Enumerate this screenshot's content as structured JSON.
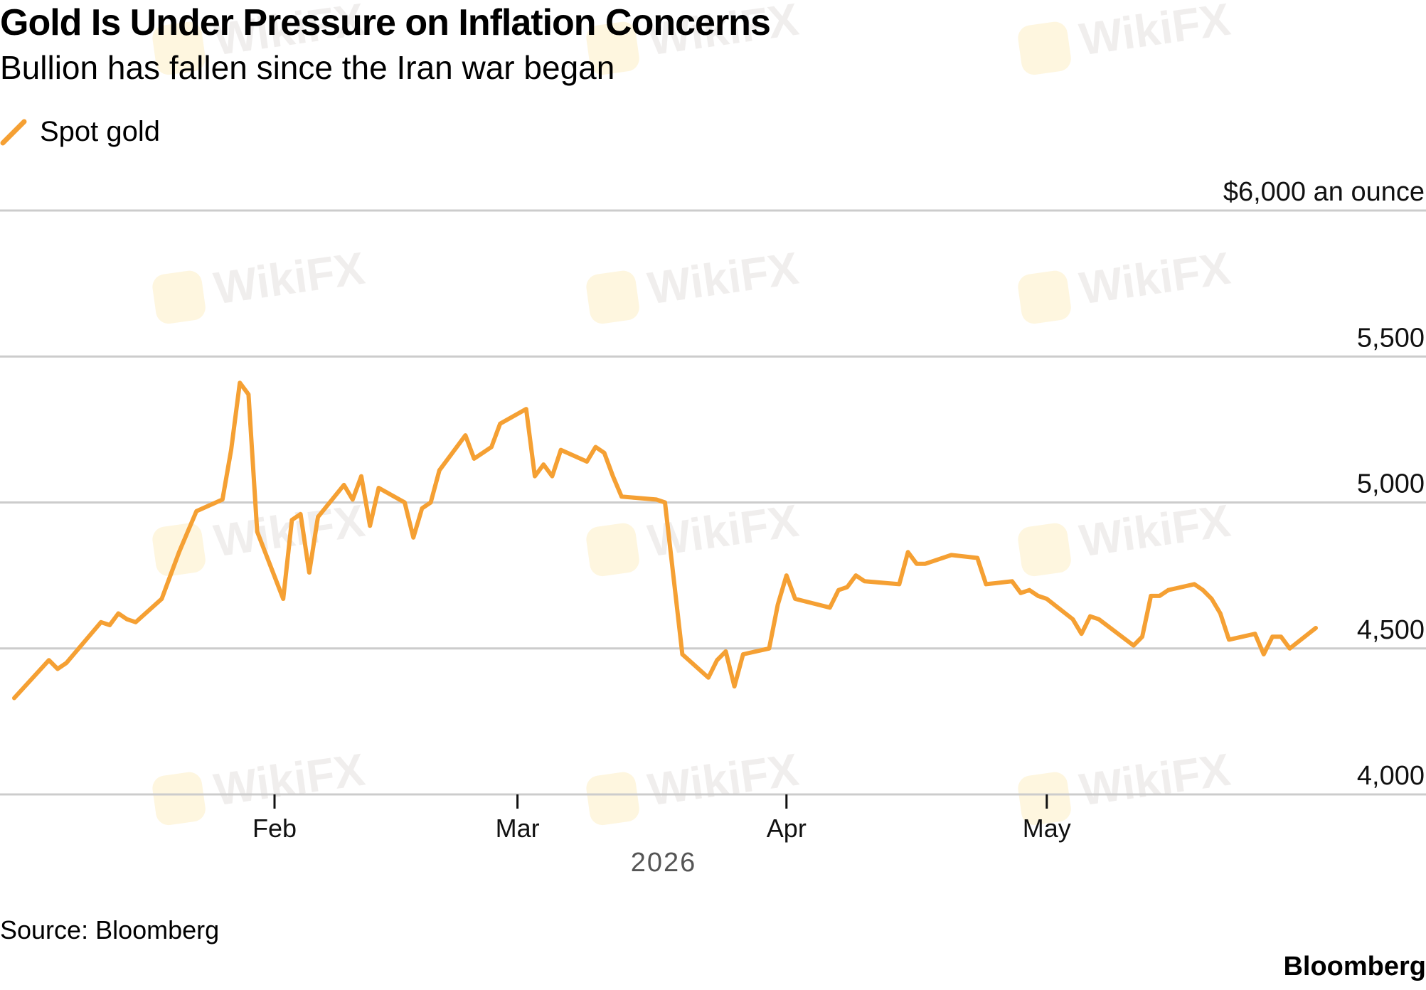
{
  "header": {
    "title": "Gold Is Under Pressure on Inflation Concerns",
    "subtitle": "Bullion has fallen since the Iran war began"
  },
  "legend": {
    "label": "Spot gold",
    "color": "#f5a033"
  },
  "footer": {
    "source": "Source: Bloomberg",
    "brand": "Bloomberg"
  },
  "watermark": {
    "text": "WikiFX"
  },
  "chart_data": {
    "type": "line",
    "title": "Gold Is Under Pressure on Inflation Concerns",
    "subtitle": "Bullion has fallen since the Iran war began",
    "xlabel": "2026",
    "ylabel": "",
    "y_unit_label": "$6,000 an ounce",
    "ylim": [
      4000,
      6000
    ],
    "y_ticks": [
      {
        "value": 6000,
        "label": "$6,000 an ounce"
      },
      {
        "value": 5500,
        "label": "5,500"
      },
      {
        "value": 5000,
        "label": "5,000"
      },
      {
        "value": 4500,
        "label": "4,500"
      },
      {
        "value": 4000,
        "label": "4,000"
      }
    ],
    "x_range": [
      "2026-01-01",
      "2026-05-29"
    ],
    "x_ticks": [
      {
        "date": "2026-02-01",
        "label": "Feb"
      },
      {
        "date": "2026-03-01",
        "label": "Mar"
      },
      {
        "date": "2026-04-01",
        "label": "Apr"
      },
      {
        "date": "2026-05-01",
        "label": "May"
      }
    ],
    "grid": true,
    "legend_position": "top-left",
    "series": [
      {
        "name": "Spot gold",
        "color": "#f5a033",
        "points": [
          [
            "2026-01-02",
            4330
          ],
          [
            "2026-01-06",
            4460
          ],
          [
            "2026-01-07",
            4430
          ],
          [
            "2026-01-08",
            4450
          ],
          [
            "2026-01-12",
            4590
          ],
          [
            "2026-01-13",
            4580
          ],
          [
            "2026-01-14",
            4620
          ],
          [
            "2026-01-15",
            4600
          ],
          [
            "2026-01-16",
            4590
          ],
          [
            "2026-01-19",
            4670
          ],
          [
            "2026-01-20",
            4750
          ],
          [
            "2026-01-21",
            4830
          ],
          [
            "2026-01-22",
            4900
          ],
          [
            "2026-01-23",
            4970
          ],
          [
            "2026-01-26",
            5010
          ],
          [
            "2026-01-27",
            5180
          ],
          [
            "2026-01-28",
            5410
          ],
          [
            "2026-01-29",
            5370
          ],
          [
            "2026-01-30",
            4900
          ],
          [
            "2026-02-02",
            4670
          ],
          [
            "2026-02-03",
            4940
          ],
          [
            "2026-02-04",
            4960
          ],
          [
            "2026-02-05",
            4760
          ],
          [
            "2026-02-06",
            4950
          ],
          [
            "2026-02-09",
            5060
          ],
          [
            "2026-02-10",
            5010
          ],
          [
            "2026-02-11",
            5090
          ],
          [
            "2026-02-12",
            4920
          ],
          [
            "2026-02-13",
            5050
          ],
          [
            "2026-02-16",
            5000
          ],
          [
            "2026-02-17",
            4880
          ],
          [
            "2026-02-18",
            4980
          ],
          [
            "2026-02-19",
            5000
          ],
          [
            "2026-02-20",
            5110
          ],
          [
            "2026-02-23",
            5230
          ],
          [
            "2026-02-24",
            5150
          ],
          [
            "2026-02-25",
            5170
          ],
          [
            "2026-02-26",
            5190
          ],
          [
            "2026-02-27",
            5270
          ],
          [
            "2026-03-02",
            5320
          ],
          [
            "2026-03-03",
            5090
          ],
          [
            "2026-03-04",
            5130
          ],
          [
            "2026-03-05",
            5090
          ],
          [
            "2026-03-06",
            5180
          ],
          [
            "2026-03-09",
            5140
          ],
          [
            "2026-03-10",
            5190
          ],
          [
            "2026-03-11",
            5170
          ],
          [
            "2026-03-12",
            5090
          ],
          [
            "2026-03-13",
            5020
          ],
          [
            "2026-03-17",
            5010
          ],
          [
            "2026-03-18",
            5000
          ],
          [
            "2026-03-20",
            4480
          ],
          [
            "2026-03-23",
            4400
          ],
          [
            "2026-03-24",
            4460
          ],
          [
            "2026-03-25",
            4490
          ],
          [
            "2026-03-26",
            4370
          ],
          [
            "2026-03-27",
            4480
          ],
          [
            "2026-03-30",
            4500
          ],
          [
            "2026-03-31",
            4650
          ],
          [
            "2026-04-01",
            4750
          ],
          [
            "2026-04-02",
            4670
          ],
          [
            "2026-04-06",
            4640
          ],
          [
            "2026-04-07",
            4700
          ],
          [
            "2026-04-08",
            4710
          ],
          [
            "2026-04-09",
            4750
          ],
          [
            "2026-04-10",
            4730
          ],
          [
            "2026-04-14",
            4720
          ],
          [
            "2026-04-15",
            4830
          ],
          [
            "2026-04-16",
            4790
          ],
          [
            "2026-04-17",
            4790
          ],
          [
            "2026-04-20",
            4820
          ],
          [
            "2026-04-23",
            4810
          ],
          [
            "2026-04-24",
            4720
          ],
          [
            "2026-04-27",
            4730
          ],
          [
            "2026-04-28",
            4690
          ],
          [
            "2026-04-29",
            4700
          ],
          [
            "2026-04-30",
            4680
          ],
          [
            "2026-05-01",
            4670
          ],
          [
            "2026-05-04",
            4600
          ],
          [
            "2026-05-05",
            4550
          ],
          [
            "2026-05-06",
            4610
          ],
          [
            "2026-05-07",
            4600
          ],
          [
            "2026-05-11",
            4510
          ],
          [
            "2026-05-12",
            4540
          ],
          [
            "2026-05-13",
            4680
          ],
          [
            "2026-05-14",
            4680
          ],
          [
            "2026-05-15",
            4700
          ],
          [
            "2026-05-18",
            4720
          ],
          [
            "2026-05-19",
            4700
          ],
          [
            "2026-05-20",
            4670
          ],
          [
            "2026-05-21",
            4620
          ],
          [
            "2026-05-22",
            4530
          ],
          [
            "2026-05-25",
            4550
          ],
          [
            "2026-05-26",
            4480
          ],
          [
            "2026-05-27",
            4540
          ],
          [
            "2026-05-28",
            4540
          ],
          [
            "2026-05-29",
            4500
          ],
          [
            "2026-06-01",
            4570
          ]
        ]
      }
    ]
  }
}
